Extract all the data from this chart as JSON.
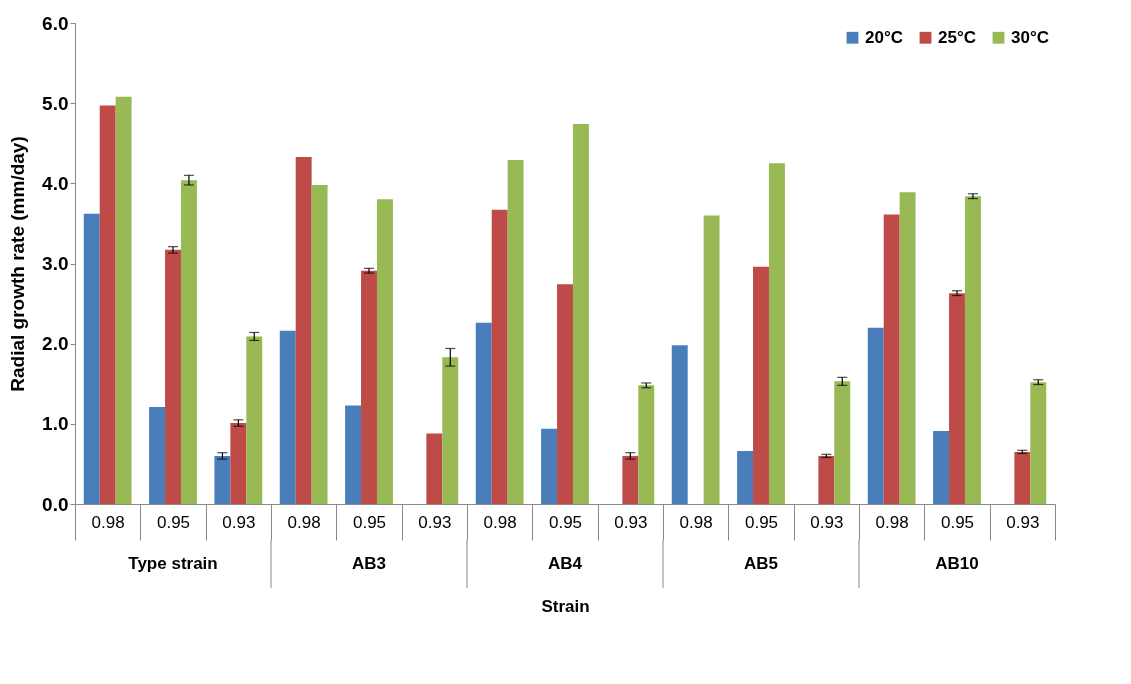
{
  "chart_data": {
    "type": "bar",
    "xlabel": "Strain",
    "ylabel": "Radial growth rate (mm/day)",
    "categories": [
      "0.98",
      "0.95",
      "0.93",
      "0.98",
      "0.95",
      "0.93",
      "0.98",
      "0.95",
      "0.93",
      "0.98",
      "0.95",
      "0.93",
      "0.98",
      "0.95",
      "0.93"
    ],
    "annotations": [
      "Type strain",
      "AB3",
      "AB4",
      "AB5",
      "AB10"
    ],
    "series": [
      {
        "name": "20°C",
        "color": "#4a7ebb",
        "values": [
          3.62,
          1.21,
          0.6,
          2.16,
          1.23,
          null,
          2.26,
          0.94,
          null,
          1.98,
          0.66,
          null,
          2.2,
          0.91,
          null
        ],
        "errors": [
          null,
          null,
          0.04,
          null,
          null,
          null,
          null,
          null,
          null,
          null,
          null,
          null,
          null,
          null,
          null
        ]
      },
      {
        "name": "25°C",
        "color": "#be4b48",
        "values": [
          4.97,
          3.17,
          1.01,
          4.33,
          2.91,
          0.88,
          3.67,
          2.74,
          0.6,
          null,
          2.96,
          0.6,
          3.61,
          2.63,
          0.65
        ],
        "errors": [
          null,
          0.04,
          0.04,
          null,
          0.03,
          null,
          null,
          null,
          0.04,
          null,
          null,
          0.02,
          null,
          0.03,
          0.02
        ]
      },
      {
        "name": "30°C",
        "color": "#98b954",
        "values": [
          5.08,
          4.04,
          2.09,
          3.98,
          3.8,
          1.83,
          4.29,
          4.74,
          1.48,
          3.6,
          4.25,
          1.53,
          3.89,
          3.84,
          1.52
        ],
        "errors": [
          null,
          0.06,
          0.05,
          null,
          null,
          0.11,
          null,
          null,
          0.03,
          null,
          null,
          0.05,
          null,
          0.03,
          0.03
        ]
      }
    ],
    "ylim": [
      0,
      6
    ],
    "yticks": [
      {
        "value": 0,
        "label": "0.0"
      },
      {
        "value": 1,
        "label": "1.0"
      },
      {
        "value": 2,
        "label": "2.0"
      },
      {
        "value": 3,
        "label": "3.0"
      },
      {
        "value": 4,
        "label": "4.0"
      },
      {
        "value": 5,
        "label": "5.0"
      },
      {
        "value": 6,
        "label": "6.0"
      }
    ],
    "grid": false,
    "legend": "top right"
  }
}
